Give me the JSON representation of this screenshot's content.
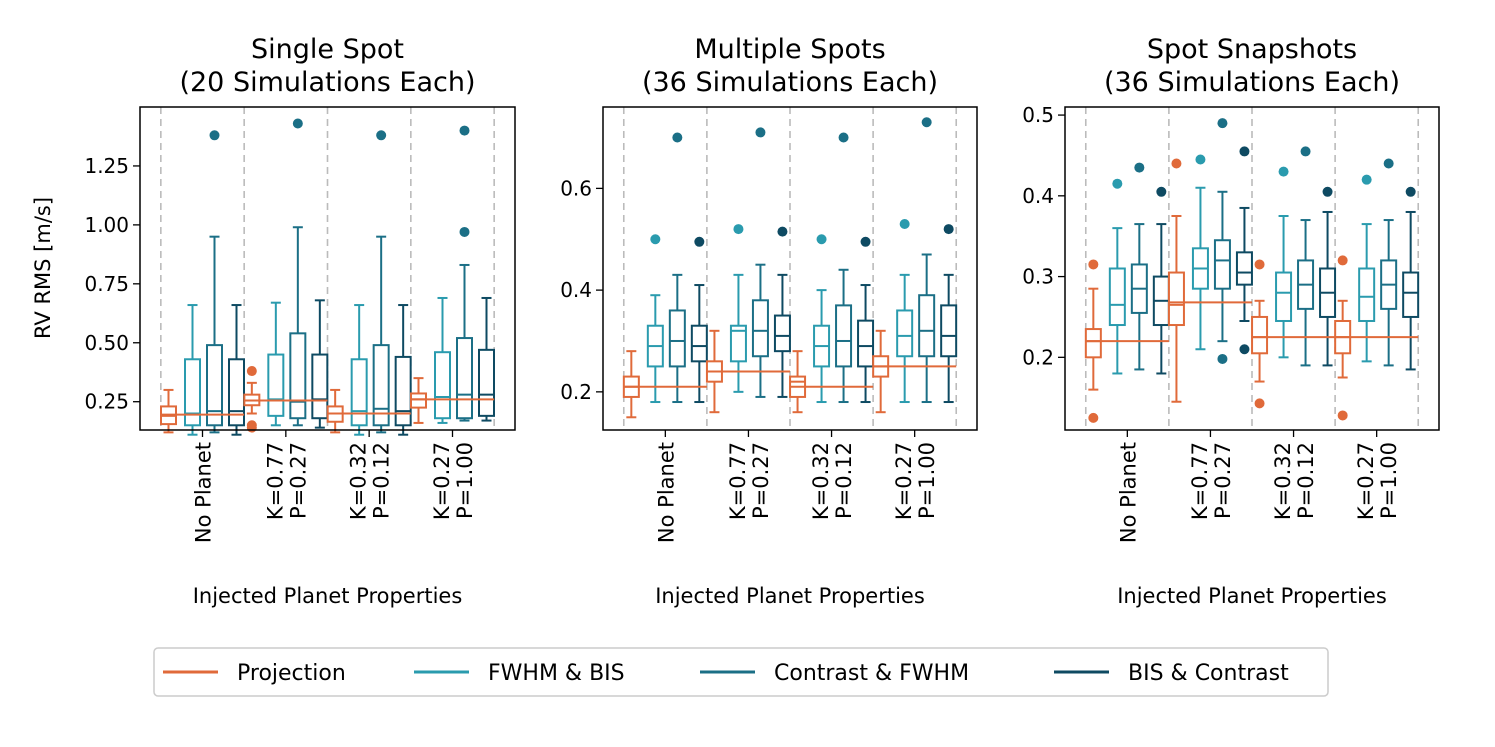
{
  "chart_data": {
    "type": "box",
    "ylabel": "RV RMS [m/s]",
    "xlabel": "Injected Planet Properties",
    "categories": [
      [
        "No Planet"
      ],
      [
        "K=0.77",
        "P=0.27"
      ],
      [
        "K=0.32",
        "P=0.12"
      ],
      [
        "K=0.27",
        "P=1.00"
      ]
    ],
    "legend": {
      "placement": "bottom",
      "items": [
        {
          "label": "Projection",
          "color": "#E06A3A"
        },
        {
          "label": "FWHM & BIS",
          "color": "#2A9BAE"
        },
        {
          "label": "Contrast & FWHM",
          "color": "#1B6F86"
        },
        {
          "label": "BIS & Contrast",
          "color": "#0E4A62"
        }
      ]
    },
    "panels": [
      {
        "title": [
          "Single Spot",
          "(20 Simulations Each)"
        ],
        "ylim": [
          0.13,
          1.5
        ],
        "yticks": [
          0.25,
          0.5,
          0.75,
          1.0,
          1.25
        ],
        "ytick_labels": [
          "0.25",
          "0.50",
          "0.75",
          "1.00",
          "1.25"
        ],
        "groups": [
          {
            "boxes": [
              {
                "whislo": 0.12,
                "q1": 0.155,
                "med": 0.19,
                "q3": 0.23,
                "whishi": 0.3,
                "fliers": []
              },
              {
                "whislo": 0.11,
                "q1": 0.15,
                "med": 0.2,
                "q3": 0.43,
                "whishi": 0.66,
                "fliers": []
              },
              {
                "whislo": 0.12,
                "q1": 0.15,
                "med": 0.21,
                "q3": 0.49,
                "whishi": 0.95,
                "fliers": [
                  1.38
                ]
              },
              {
                "whislo": 0.11,
                "q1": 0.15,
                "med": 0.21,
                "q3": 0.43,
                "whishi": 0.66,
                "fliers": []
              }
            ],
            "mean": 0.195
          },
          {
            "boxes": [
              {
                "whislo": 0.2,
                "q1": 0.235,
                "med": 0.255,
                "q3": 0.28,
                "whishi": 0.33,
                "fliers": [
                  0.38,
                  0.15,
                  0.14
                ]
              },
              {
                "whislo": 0.15,
                "q1": 0.19,
                "med": 0.26,
                "q3": 0.45,
                "whishi": 0.67,
                "fliers": []
              },
              {
                "whislo": 0.15,
                "q1": 0.18,
                "med": 0.25,
                "q3": 0.54,
                "whishi": 0.99,
                "fliers": [
                  1.43
                ]
              },
              {
                "whislo": 0.14,
                "q1": 0.18,
                "med": 0.26,
                "q3": 0.45,
                "whishi": 0.68,
                "fliers": []
              }
            ],
            "mean": 0.255
          },
          {
            "boxes": [
              {
                "whislo": 0.12,
                "q1": 0.165,
                "med": 0.2,
                "q3": 0.23,
                "whishi": 0.3,
                "fliers": []
              },
              {
                "whislo": 0.11,
                "q1": 0.15,
                "med": 0.21,
                "q3": 0.43,
                "whishi": 0.66,
                "fliers": []
              },
              {
                "whislo": 0.12,
                "q1": 0.15,
                "med": 0.22,
                "q3": 0.49,
                "whishi": 0.95,
                "fliers": [
                  1.38
                ]
              },
              {
                "whislo": 0.11,
                "q1": 0.15,
                "med": 0.21,
                "q3": 0.44,
                "whishi": 0.66,
                "fliers": []
              }
            ],
            "mean": 0.2
          },
          {
            "boxes": [
              {
                "whislo": 0.16,
                "q1": 0.225,
                "med": 0.26,
                "q3": 0.285,
                "whishi": 0.35,
                "fliers": []
              },
              {
                "whislo": 0.16,
                "q1": 0.18,
                "med": 0.27,
                "q3": 0.46,
                "whishi": 0.69,
                "fliers": []
              },
              {
                "whislo": 0.17,
                "q1": 0.18,
                "med": 0.28,
                "q3": 0.52,
                "whishi": 0.83,
                "fliers": [
                  1.4,
                  0.97
                ]
              },
              {
                "whislo": 0.17,
                "q1": 0.19,
                "med": 0.28,
                "q3": 0.47,
                "whishi": 0.69,
                "fliers": []
              }
            ],
            "mean": 0.26
          }
        ]
      },
      {
        "title": [
          "Multiple Spots",
          "(36 Simulations Each)"
        ],
        "ylim": [
          0.125,
          0.76
        ],
        "yticks": [
          0.2,
          0.4,
          0.6
        ],
        "ytick_labels": [
          "0.2",
          "0.4",
          "0.6"
        ],
        "groups": [
          {
            "boxes": [
              {
                "whislo": 0.15,
                "q1": 0.19,
                "med": 0.21,
                "q3": 0.23,
                "whishi": 0.28,
                "fliers": []
              },
              {
                "whislo": 0.18,
                "q1": 0.25,
                "med": 0.29,
                "q3": 0.33,
                "whishi": 0.39,
                "fliers": [
                  0.5
                ]
              },
              {
                "whislo": 0.18,
                "q1": 0.25,
                "med": 0.3,
                "q3": 0.36,
                "whishi": 0.43,
                "fliers": [
                  0.7
                ]
              },
              {
                "whislo": 0.18,
                "q1": 0.26,
                "med": 0.29,
                "q3": 0.33,
                "whishi": 0.41,
                "fliers": [
                  0.495
                ]
              }
            ],
            "mean": 0.21
          },
          {
            "boxes": [
              {
                "whislo": 0.16,
                "q1": 0.22,
                "med": 0.24,
                "q3": 0.26,
                "whishi": 0.32,
                "fliers": []
              },
              {
                "whislo": 0.2,
                "q1": 0.26,
                "med": 0.32,
                "q3": 0.33,
                "whishi": 0.43,
                "fliers": [
                  0.52
                ]
              },
              {
                "whislo": 0.19,
                "q1": 0.27,
                "med": 0.32,
                "q3": 0.38,
                "whishi": 0.45,
                "fliers": [
                  0.71
                ]
              },
              {
                "whislo": 0.19,
                "q1": 0.28,
                "med": 0.31,
                "q3": 0.35,
                "whishi": 0.43,
                "fliers": [
                  0.515
                ]
              }
            ],
            "mean": 0.24
          },
          {
            "boxes": [
              {
                "whislo": 0.16,
                "q1": 0.19,
                "med": 0.22,
                "q3": 0.23,
                "whishi": 0.28,
                "fliers": []
              },
              {
                "whislo": 0.18,
                "q1": 0.25,
                "med": 0.29,
                "q3": 0.33,
                "whishi": 0.4,
                "fliers": [
                  0.5
                ]
              },
              {
                "whislo": 0.18,
                "q1": 0.25,
                "med": 0.3,
                "q3": 0.37,
                "whishi": 0.44,
                "fliers": [
                  0.7
                ]
              },
              {
                "whislo": 0.18,
                "q1": 0.25,
                "med": 0.29,
                "q3": 0.34,
                "whishi": 0.41,
                "fliers": [
                  0.495
                ]
              }
            ],
            "mean": 0.21
          },
          {
            "boxes": [
              {
                "whislo": 0.16,
                "q1": 0.23,
                "med": 0.25,
                "q3": 0.27,
                "whishi": 0.32,
                "fliers": []
              },
              {
                "whislo": 0.18,
                "q1": 0.27,
                "med": 0.31,
                "q3": 0.36,
                "whishi": 0.43,
                "fliers": [
                  0.53
                ]
              },
              {
                "whislo": 0.18,
                "q1": 0.27,
                "med": 0.32,
                "q3": 0.39,
                "whishi": 0.47,
                "fliers": [
                  0.73
                ]
              },
              {
                "whislo": 0.18,
                "q1": 0.27,
                "med": 0.31,
                "q3": 0.37,
                "whishi": 0.43,
                "fliers": [
                  0.52
                ]
              }
            ],
            "mean": 0.25
          }
        ]
      },
      {
        "title": [
          "Spot Snapshots",
          "(36 Simulations Each)"
        ],
        "ylim": [
          0.11,
          0.51
        ],
        "yticks": [
          0.2,
          0.3,
          0.4,
          0.5
        ],
        "ytick_labels": [
          "0.2",
          "0.3",
          "0.4",
          "0.5"
        ],
        "groups": [
          {
            "boxes": [
              {
                "whislo": 0.16,
                "q1": 0.2,
                "med": 0.22,
                "q3": 0.235,
                "whishi": 0.285,
                "fliers": [
                  0.315,
                  0.125
                ]
              },
              {
                "whislo": 0.18,
                "q1": 0.24,
                "med": 0.265,
                "q3": 0.31,
                "whishi": 0.36,
                "fliers": [
                  0.415
                ]
              },
              {
                "whislo": 0.185,
                "q1": 0.255,
                "med": 0.285,
                "q3": 0.315,
                "whishi": 0.365,
                "fliers": [
                  0.435
                ]
              },
              {
                "whislo": 0.18,
                "q1": 0.24,
                "med": 0.27,
                "q3": 0.3,
                "whishi": 0.365,
                "fliers": [
                  0.405
                ]
              }
            ],
            "mean": 0.22
          },
          {
            "boxes": [
              {
                "whislo": 0.145,
                "q1": 0.24,
                "med": 0.265,
                "q3": 0.305,
                "whishi": 0.375,
                "fliers": [
                  0.44
                ]
              },
              {
                "whislo": 0.21,
                "q1": 0.285,
                "med": 0.31,
                "q3": 0.335,
                "whishi": 0.41,
                "fliers": [
                  0.445
                ]
              },
              {
                "whislo": 0.22,
                "q1": 0.285,
                "med": 0.32,
                "q3": 0.345,
                "whishi": 0.405,
                "fliers": [
                  0.49,
                  0.198
                ]
              },
              {
                "whislo": 0.245,
                "q1": 0.29,
                "med": 0.305,
                "q3": 0.33,
                "whishi": 0.385,
                "fliers": [
                  0.455,
                  0.21
                ]
              }
            ],
            "mean": 0.268
          },
          {
            "boxes": [
              {
                "whislo": 0.17,
                "q1": 0.205,
                "med": 0.225,
                "q3": 0.25,
                "whishi": 0.27,
                "fliers": [
                  0.315,
                  0.143
                ]
              },
              {
                "whislo": 0.2,
                "q1": 0.245,
                "med": 0.28,
                "q3": 0.305,
                "whishi": 0.375,
                "fliers": [
                  0.43
                ]
              },
              {
                "whislo": 0.19,
                "q1": 0.26,
                "med": 0.29,
                "q3": 0.32,
                "whishi": 0.37,
                "fliers": [
                  0.455
                ]
              },
              {
                "whislo": 0.19,
                "q1": 0.25,
                "med": 0.28,
                "q3": 0.31,
                "whishi": 0.38,
                "fliers": [
                  0.405
                ]
              }
            ],
            "mean": 0.225
          },
          {
            "boxes": [
              {
                "whislo": 0.175,
                "q1": 0.205,
                "med": 0.225,
                "q3": 0.245,
                "whishi": 0.27,
                "fliers": [
                  0.32,
                  0.128
                ]
              },
              {
                "whislo": 0.195,
                "q1": 0.245,
                "med": 0.275,
                "q3": 0.31,
                "whishi": 0.365,
                "fliers": [
                  0.42
                ]
              },
              {
                "whislo": 0.19,
                "q1": 0.26,
                "med": 0.29,
                "q3": 0.32,
                "whishi": 0.37,
                "fliers": [
                  0.44
                ]
              },
              {
                "whislo": 0.185,
                "q1": 0.25,
                "med": 0.28,
                "q3": 0.305,
                "whishi": 0.38,
                "fliers": [
                  0.405
                ]
              }
            ],
            "mean": 0.225
          }
        ]
      }
    ]
  }
}
